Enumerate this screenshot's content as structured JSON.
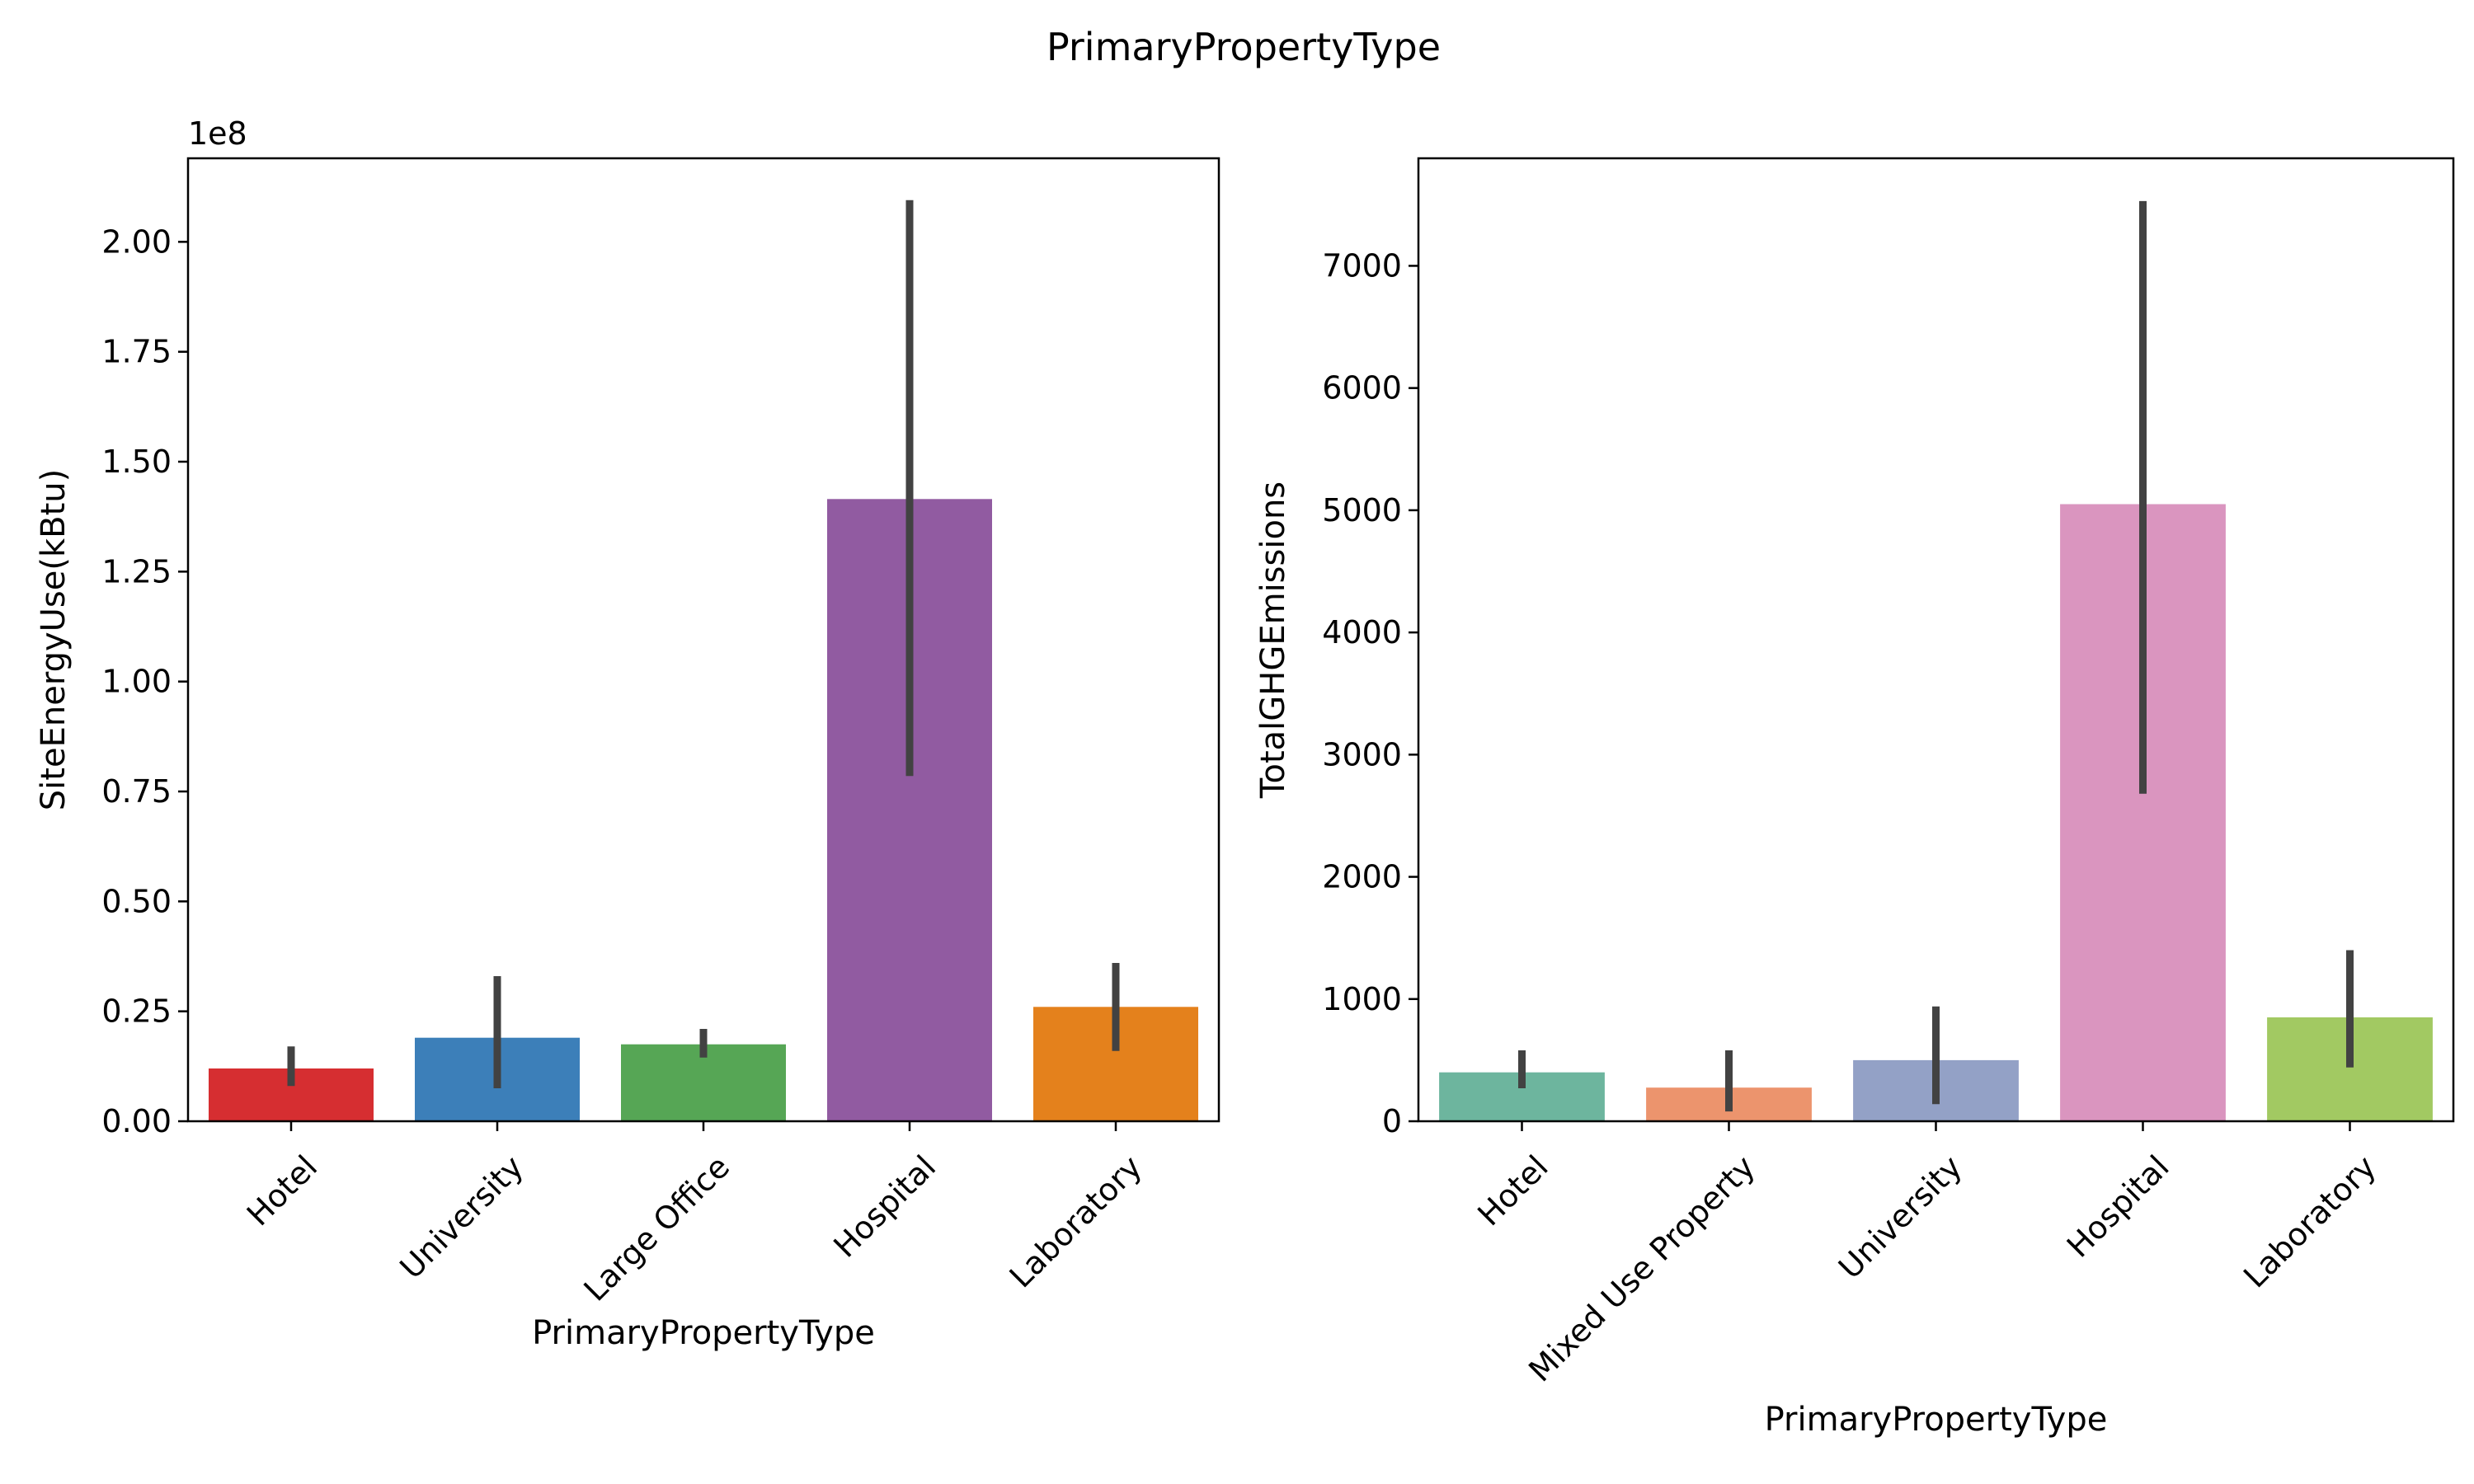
{
  "figure": {
    "title": "PrimaryPropertyType"
  },
  "chart_data": [
    {
      "type": "bar",
      "xlabel": "PrimaryPropertyType",
      "ylabel": "SiteEnergyUse(kBtu)",
      "y_offset_label": "1e8",
      "categories": [
        "Hotel",
        "University",
        "Large Office",
        "Hospital",
        "Laboratory"
      ],
      "values": [
        0.12,
        0.19,
        0.175,
        1.415,
        0.26
      ],
      "error_low": [
        0.08,
        0.075,
        0.145,
        0.785,
        0.16
      ],
      "error_high": [
        0.17,
        0.33,
        0.21,
        2.095,
        0.36
      ],
      "colors": [
        "#d62e31",
        "#3c7fb9",
        "#56a655",
        "#915ba1",
        "#e4811c"
      ],
      "ylim": [
        0,
        2.19
      ],
      "yticks": [
        0.0,
        0.25,
        0.5,
        0.75,
        1.0,
        1.25,
        1.5,
        1.75,
        2.0
      ],
      "ytick_labels": [
        "0.00",
        "0.25",
        "0.50",
        "0.75",
        "1.00",
        "1.25",
        "1.50",
        "1.75",
        "2.00"
      ],
      "grid": false,
      "legend": "none"
    },
    {
      "type": "bar",
      "xlabel": "PrimaryPropertyType",
      "ylabel": "TotalGHGEmissions",
      "categories": [
        "Hotel",
        "Mixed Use Property",
        "University",
        "Hospital",
        "Laboratory"
      ],
      "values": [
        400,
        275,
        500,
        5050,
        850
      ],
      "error_low": [
        270,
        80,
        140,
        2680,
        440
      ],
      "error_high": [
        580,
        580,
        940,
        7530,
        1400
      ],
      "colors": [
        "#6db59e",
        "#ec946d",
        "#93a1c6",
        "#da95bf",
        "#a2c962"
      ],
      "ylim": [
        0,
        7880
      ],
      "yticks": [
        0,
        1000,
        2000,
        3000,
        4000,
        5000,
        6000,
        7000
      ],
      "ytick_labels": [
        "0",
        "1000",
        "2000",
        "3000",
        "4000",
        "5000",
        "6000",
        "7000"
      ],
      "grid": false,
      "legend": "none"
    }
  ]
}
